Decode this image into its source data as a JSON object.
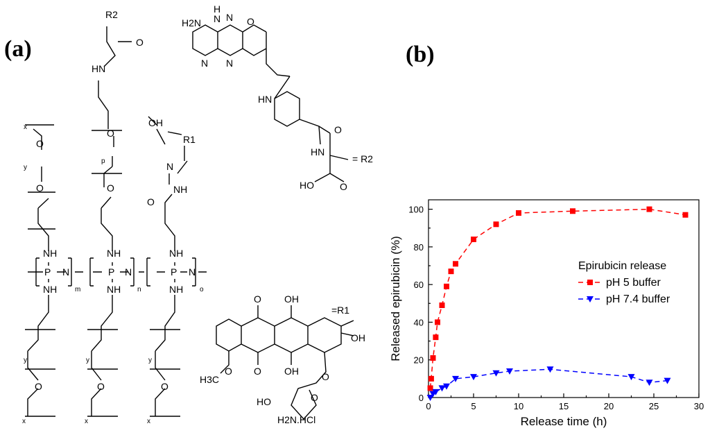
{
  "labels": {
    "panel_a": "(a)",
    "panel_b": "(b)"
  },
  "chem_labels": {
    "r2_top": "R2",
    "carbonyl_o": "O",
    "hn": "HN",
    "o_ether": "O",
    "p_sub": "p",
    "o_ether2": "O",
    "x_top": "x",
    "o_left": "O",
    "y_left": "y",
    "o_left2": "O",
    "oh": "OH",
    "r1": "R1",
    "n_hyd": "N",
    "nh_hyd": "NH",
    "o_hyd": "O",
    "nh1": "NH",
    "p1": "P",
    "n1": "N",
    "nh1b": "NH",
    "m": "m",
    "nh2": "NH",
    "p2": "P",
    "n2": "N",
    "nh2b": "NH",
    "n_sub": "n",
    "nh3": "NH",
    "p3": "P",
    "n3": "N",
    "nh3b": "NH",
    "o_sub": "o",
    "y1": "y",
    "y2": "y",
    "y3": "y",
    "x1": "x",
    "x2": "x",
    "x3": "x",
    "o_b1": "O",
    "o_b2": "O",
    "o_b3": "O",
    "h2n": "H2N",
    "h": "H",
    "n_a": "N",
    "n_b": "N",
    "n_c": "N",
    "n_d": "N",
    "o_f": "O",
    "hn_f": "HN",
    "o_amide": "O",
    "hn_amide": "HN",
    "r2_eq": "= R2",
    "ho": "HO",
    "o_cooh": "O",
    "o_q1": "O",
    "oh_q1": "OH",
    "r1_eq": "=R1",
    "oh_q2": "OH",
    "h3co": "H3C",
    "o_me": "O",
    "o_q2": "O",
    "oh_q3": "OH",
    "o_gly": "O",
    "ho_sugar": "HO",
    "o_sugar": "O",
    "nh2hcl": "H2N.HCl"
  },
  "chart_data": {
    "type": "line",
    "xlabel": "Release time (h)",
    "ylabel": "Released epirubicin (%)",
    "xlim": [
      0,
      30
    ],
    "ylim": [
      0,
      105
    ],
    "xticks": [
      0,
      5,
      10,
      15,
      20,
      25,
      30
    ],
    "yticks": [
      0,
      20,
      40,
      60,
      80,
      100
    ],
    "grid": false,
    "legend_title": "Epirubicin release",
    "legend_position": "right",
    "series": [
      {
        "name": "pH 5 buffer",
        "color": "#ff0000",
        "marker": "square",
        "x": [
          0.2,
          0.3,
          0.5,
          0.8,
          1.0,
          1.5,
          2.0,
          2.5,
          3.0,
          5.0,
          7.5,
          10.0,
          16.0,
          24.5,
          28.5
        ],
        "y": [
          5,
          10,
          21,
          32,
          40,
          49,
          59,
          67,
          71,
          84,
          92,
          98,
          99,
          100,
          97
        ]
      },
      {
        "name": "pH 7.4 buffer",
        "color": "#0000ff",
        "marker": "triangle-down",
        "x": [
          0.2,
          0.5,
          0.8,
          1.5,
          2.0,
          3.0,
          5.0,
          7.5,
          9.0,
          13.5,
          22.5,
          24.5,
          26.5
        ],
        "y": [
          0,
          2,
          3,
          5,
          6,
          10,
          11,
          13,
          14,
          15,
          11,
          8,
          9
        ]
      }
    ]
  }
}
